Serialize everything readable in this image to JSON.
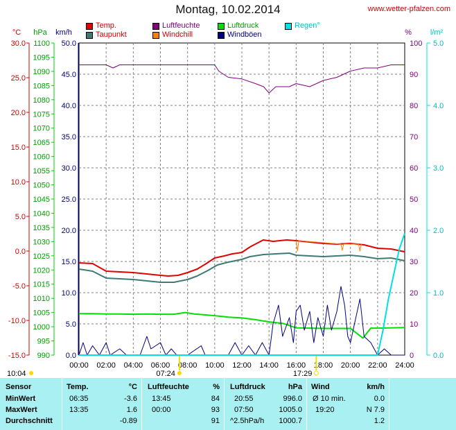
{
  "title": "Montag, 10.02.2014",
  "site": "www.wetter-pfalzen.com",
  "colors": {
    "temp": "#e00000",
    "dew": "#3c7a72",
    "humidity": "#800080",
    "windchill": "#ff8000",
    "pressure": "#00e000",
    "gust": "#000080",
    "rain": "#00e0e0",
    "grid": "#808080"
  },
  "legend": [
    {
      "label": "Temp.",
      "color": "#e00000",
      "text_color": "#d00000"
    },
    {
      "label": "Taupunkt",
      "color": "#3c7a72",
      "text_color": "#d00000"
    },
    {
      "label": "Luftfeuchte",
      "color": "#800080",
      "text_color": "#800080"
    },
    {
      "label": "Windchill",
      "color": "#ff8000",
      "text_color": "#d00000"
    },
    {
      "label": "Luftdruck",
      "color": "#00e000",
      "text_color": "#00a000"
    },
    {
      "label": "Windböen",
      "color": "#000080",
      "text_color": "#000080"
    },
    {
      "label": "Regen°",
      "color": "#00e0e0",
      "text_color": "#00c0c0"
    }
  ],
  "axes": {
    "temp": {
      "unit": "°C",
      "ticks": [
        "30.0",
        "25.0",
        "20.0",
        "15.0",
        "10.0",
        "5.0",
        "0.0",
        "-5.0",
        "-10.0",
        "-15.0"
      ]
    },
    "pressure": {
      "unit": "hPa",
      "ticks": [
        "1100",
        "1095",
        "1090",
        "1085",
        "1080",
        "1075",
        "1070",
        "1065",
        "1060",
        "1055",
        "1050",
        "1045",
        "1040",
        "1035",
        "1030",
        "1025",
        "1020",
        "1015",
        "1010",
        "1005",
        "1000",
        "995",
        "990"
      ]
    },
    "wind": {
      "unit": "km/h",
      "ticks": [
        "50.0",
        "45.0",
        "40.0",
        "35.0",
        "30.0",
        "25.0",
        "20.0",
        "15.0",
        "10.0",
        "5.0",
        "0.0"
      ]
    },
    "humidity": {
      "unit": "%",
      "ticks": [
        "100",
        "90",
        "80",
        "70",
        "60",
        "50",
        "40",
        "30",
        "20",
        "10",
        "0"
      ]
    },
    "rain": {
      "unit": "l/m²",
      "ticks": [
        "5.0",
        "4.0",
        "3.0",
        "2.0",
        "1.0",
        "0.0"
      ]
    },
    "x_ticks": [
      "00:00",
      "02:00",
      "04:00",
      "06:00",
      "08:00",
      "10:00",
      "12:00",
      "14:00",
      "16:00",
      "18:00",
      "20:00",
      "22:00",
      "24:00"
    ]
  },
  "sun": {
    "moon_up": "10:04",
    "sunrise": "07:24",
    "sunset": "17:29"
  },
  "chart_data": {
    "type": "line",
    "title": "Montag, 10.02.2014",
    "x_unit": "hours",
    "xlim": [
      0,
      24
    ],
    "series": [
      {
        "name": "Temp.",
        "unit": "°C",
        "ylim": [
          -15,
          30
        ],
        "points": [
          [
            0,
            -1.7
          ],
          [
            1,
            -1.8
          ],
          [
            2,
            -2.9
          ],
          [
            3,
            -3.0
          ],
          [
            4,
            -3.1
          ],
          [
            5,
            -3.3
          ],
          [
            6,
            -3.5
          ],
          [
            6.58,
            -3.6
          ],
          [
            7.3,
            -3.5
          ],
          [
            8,
            -3.1
          ],
          [
            8.7,
            -2.6
          ],
          [
            9.3,
            -1.9
          ],
          [
            10,
            -1.0
          ],
          [
            10.7,
            -0.7
          ],
          [
            11.3,
            -0.4
          ],
          [
            12,
            -0.2
          ],
          [
            12.6,
            0.6
          ],
          [
            13.58,
            1.6
          ],
          [
            14.3,
            1.4
          ],
          [
            15.3,
            1.6
          ],
          [
            16,
            1.5
          ],
          [
            17,
            1.3
          ],
          [
            18,
            1.1
          ],
          [
            19,
            1.0
          ],
          [
            20,
            1.1
          ],
          [
            21,
            0.9
          ],
          [
            22,
            0.4
          ],
          [
            23,
            0.3
          ],
          [
            24,
            -0.1
          ]
        ]
      },
      {
        "name": "Taupunkt",
        "unit": "°C",
        "ylim": [
          -15,
          30
        ],
        "points": [
          [
            0,
            -2.6
          ],
          [
            1,
            -2.9
          ],
          [
            2,
            -3.9
          ],
          [
            3,
            -4.0
          ],
          [
            4,
            -4.1
          ],
          [
            5,
            -4.3
          ],
          [
            6,
            -4.5
          ],
          [
            7,
            -4.5
          ],
          [
            8,
            -4.1
          ],
          [
            8.7,
            -3.6
          ],
          [
            9.5,
            -2.8
          ],
          [
            10.2,
            -2.0
          ],
          [
            11,
            -1.6
          ],
          [
            12,
            -1.2
          ],
          [
            12.6,
            -0.8
          ],
          [
            13.6,
            -0.5
          ],
          [
            14.5,
            -0.4
          ],
          [
            15.5,
            -0.3
          ],
          [
            16,
            -0.6
          ],
          [
            17,
            -0.7
          ],
          [
            18,
            -0.8
          ],
          [
            19,
            -0.7
          ],
          [
            20,
            -0.6
          ],
          [
            21,
            -0.8
          ],
          [
            22,
            -1.1
          ],
          [
            23,
            -1.0
          ],
          [
            24,
            -1.4
          ]
        ]
      },
      {
        "name": "Luftfeuchte",
        "unit": "%",
        "ylim": [
          0,
          100
        ],
        "points": [
          [
            0,
            93
          ],
          [
            2,
            93
          ],
          [
            2.5,
            92
          ],
          [
            3,
            93
          ],
          [
            5,
            93
          ],
          [
            7,
            93
          ],
          [
            9,
            93
          ],
          [
            10,
            93
          ],
          [
            10.3,
            91
          ],
          [
            11,
            89
          ],
          [
            12,
            88.5
          ],
          [
            13,
            87
          ],
          [
            13.6,
            86
          ],
          [
            14,
            84
          ],
          [
            14.5,
            86
          ],
          [
            15.5,
            86
          ],
          [
            16,
            87
          ],
          [
            17,
            86
          ],
          [
            18,
            88
          ],
          [
            19,
            89
          ],
          [
            20,
            91
          ],
          [
            21,
            92
          ],
          [
            22,
            92
          ],
          [
            23,
            93
          ],
          [
            24,
            93
          ]
        ]
      },
      {
        "name": "Windchill",
        "unit": "°C",
        "ylim": [
          -15,
          30
        ],
        "points": [
          [
            16,
            1.5
          ],
          [
            16.1,
            0
          ],
          [
            16.2,
            1.5
          ],
          [
            19.3,
            1.0
          ],
          [
            19.4,
            0.1
          ],
          [
            19.5,
            1.0
          ],
          [
            20.6,
            1.0
          ],
          [
            20.7,
            0
          ],
          [
            20.8,
            1.0
          ]
        ]
      },
      {
        "name": "Luftdruck",
        "unit": "hPa",
        "ylim": [
          990,
          1100
        ],
        "points": [
          [
            0,
            1004.6
          ],
          [
            1,
            1004.6
          ],
          [
            2,
            1004.5
          ],
          [
            3,
            1004.5
          ],
          [
            4,
            1004.4
          ],
          [
            5,
            1004.5
          ],
          [
            6,
            1004.4
          ],
          [
            7,
            1004.4
          ],
          [
            7.83,
            1005.0
          ],
          [
            8.5,
            1004.5
          ],
          [
            9,
            1004.3
          ],
          [
            10,
            1003.9
          ],
          [
            11,
            1003.4
          ],
          [
            12,
            1003.1
          ],
          [
            13,
            1002.5
          ],
          [
            14,
            1001.7
          ],
          [
            15,
            1001.2
          ],
          [
            16,
            999.6
          ],
          [
            17,
            999.5
          ],
          [
            18,
            999.4
          ],
          [
            19,
            999.4
          ],
          [
            20,
            999.4
          ],
          [
            20.92,
            996.0
          ],
          [
            21.5,
            999.5
          ],
          [
            22,
            999.5
          ],
          [
            23,
            999.6
          ],
          [
            24,
            999.7
          ]
        ]
      },
      {
        "name": "Windböen",
        "unit": "km/h",
        "ylim": [
          0,
          50
        ],
        "points": [
          [
            0,
            0
          ],
          [
            0.3,
            2
          ],
          [
            0.6,
            0
          ],
          [
            1,
            1.5
          ],
          [
            1.5,
            0
          ],
          [
            2,
            2
          ],
          [
            2.3,
            0
          ],
          [
            3,
            1
          ],
          [
            3.5,
            0
          ],
          [
            4,
            0
          ],
          [
            4.5,
            0
          ],
          [
            5,
            3
          ],
          [
            5.3,
            1
          ],
          [
            6,
            2
          ],
          [
            6.4,
            0
          ],
          [
            6.8,
            1
          ],
          [
            7.2,
            0
          ],
          [
            8,
            0
          ],
          [
            9,
            1.5
          ],
          [
            9.3,
            0
          ],
          [
            10,
            0
          ],
          [
            11,
            0
          ],
          [
            11.5,
            2
          ],
          [
            12,
            0
          ],
          [
            12.5,
            1.5
          ],
          [
            13,
            0
          ],
          [
            13.5,
            2
          ],
          [
            14,
            0
          ],
          [
            14.3,
            5
          ],
          [
            14.7,
            8
          ],
          [
            15,
            3
          ],
          [
            15.5,
            6
          ],
          [
            15.8,
            2
          ],
          [
            16,
            7
          ],
          [
            16.3,
            8
          ],
          [
            16.6,
            4
          ],
          [
            17,
            7
          ],
          [
            17.3,
            2
          ],
          [
            17.6,
            6
          ],
          [
            18,
            3
          ],
          [
            18.3,
            8
          ],
          [
            18.6,
            4
          ],
          [
            19,
            7
          ],
          [
            19.3,
            11
          ],
          [
            19.58,
            7.9
          ],
          [
            19.8,
            3
          ],
          [
            20,
            2
          ],
          [
            20.3,
            5
          ],
          [
            20.7,
            9
          ],
          [
            21,
            3
          ],
          [
            21.5,
            2
          ],
          [
            22,
            0
          ],
          [
            22.5,
            1
          ],
          [
            23,
            0
          ],
          [
            24,
            0
          ]
        ]
      },
      {
        "name": "Regen°",
        "unit": "l/m²",
        "ylim": [
          0,
          5
        ],
        "points": [
          [
            0,
            0
          ],
          [
            22,
            0
          ],
          [
            22.4,
            0.4
          ],
          [
            22.8,
            0.9
          ],
          [
            23.2,
            1.3
          ],
          [
            23.6,
            1.7
          ],
          [
            24,
            1.95
          ]
        ]
      }
    ]
  },
  "stats": {
    "columns": [
      {
        "header": "Sensor",
        "rows": [
          "MinWert",
          "MaxWert",
          "Durchschnitt"
        ]
      },
      {
        "header": "Temp.",
        "unit": "°C",
        "rows": [
          [
            "06:35",
            "-3.6"
          ],
          [
            "13:35",
            "1.6"
          ],
          [
            "",
            "-0.89"
          ]
        ]
      },
      {
        "header": "Luftfeuchte",
        "unit": "%",
        "rows": [
          [
            "13:45",
            "84"
          ],
          [
            "00:00",
            "93"
          ],
          [
            "",
            "91"
          ]
        ]
      },
      {
        "header": "Luftdruck",
        "unit": "hPa",
        "rows": [
          [
            "20:55",
            "996.0"
          ],
          [
            "07:50",
            "1005.0"
          ],
          [
            "^2.5hPa/h",
            "1000.7"
          ]
        ]
      },
      {
        "header": "Wind",
        "unit": "km/h",
        "rows": [
          [
            "Ø 10 min.",
            "0.0"
          ],
          [
            "19:20",
            "N 7.9"
          ],
          [
            "",
            "1.2"
          ]
        ]
      }
    ]
  }
}
